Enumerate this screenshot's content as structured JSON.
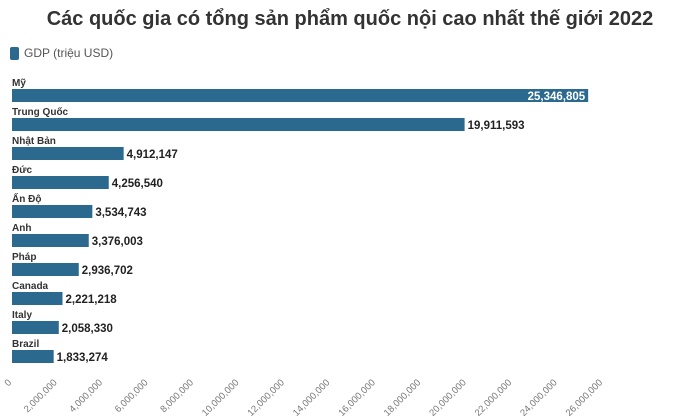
{
  "title": "Các quốc gia có tổng sản phẩm quốc nội cao nhất thế giới 2022",
  "legend": {
    "label": "GDP (triệu USD)",
    "color": "#2b6a8e"
  },
  "chart_data": {
    "type": "bar",
    "orientation": "horizontal",
    "title": "Các quốc gia có tổng sản phẩm quốc nội cao nhất thế giới 2022",
    "categories": [
      "Mỹ",
      "Trung Quốc",
      "Nhật Bản",
      "Đức",
      "Ấn Độ",
      "Anh",
      "Pháp",
      "Canada",
      "Italy",
      "Brazil"
    ],
    "series": [
      {
        "name": "GDP (triệu USD)",
        "color": "#2b6a8e",
        "values": [
          25346805,
          19911593,
          4912147,
          4256540,
          3534743,
          3376003,
          2936702,
          2221218,
          2058330,
          1833274
        ]
      }
    ],
    "value_labels": [
      "25,346,805",
      "19,911,593",
      "4,912,147",
      "4,256,540",
      "3,534,743",
      "3,376,003",
      "2,936,702",
      "2,221,218",
      "2,058,330",
      "1,833,274"
    ],
    "xlim": [
      0,
      26000000
    ],
    "xticks": [
      0,
      2000000,
      4000000,
      6000000,
      8000000,
      10000000,
      12000000,
      14000000,
      16000000,
      18000000,
      20000000,
      22000000,
      24000000,
      26000000
    ],
    "xtick_labels": [
      "0",
      "2,000,000",
      "4,000,000",
      "6,000,000",
      "8,000,000",
      "10,000,000",
      "12,000,000",
      "14,000,000",
      "16,000,000",
      "18,000,000",
      "20,000,000",
      "22,000,000",
      "24,000,000",
      "26,000,000"
    ],
    "grid": false,
    "legend_position": "top-left"
  }
}
